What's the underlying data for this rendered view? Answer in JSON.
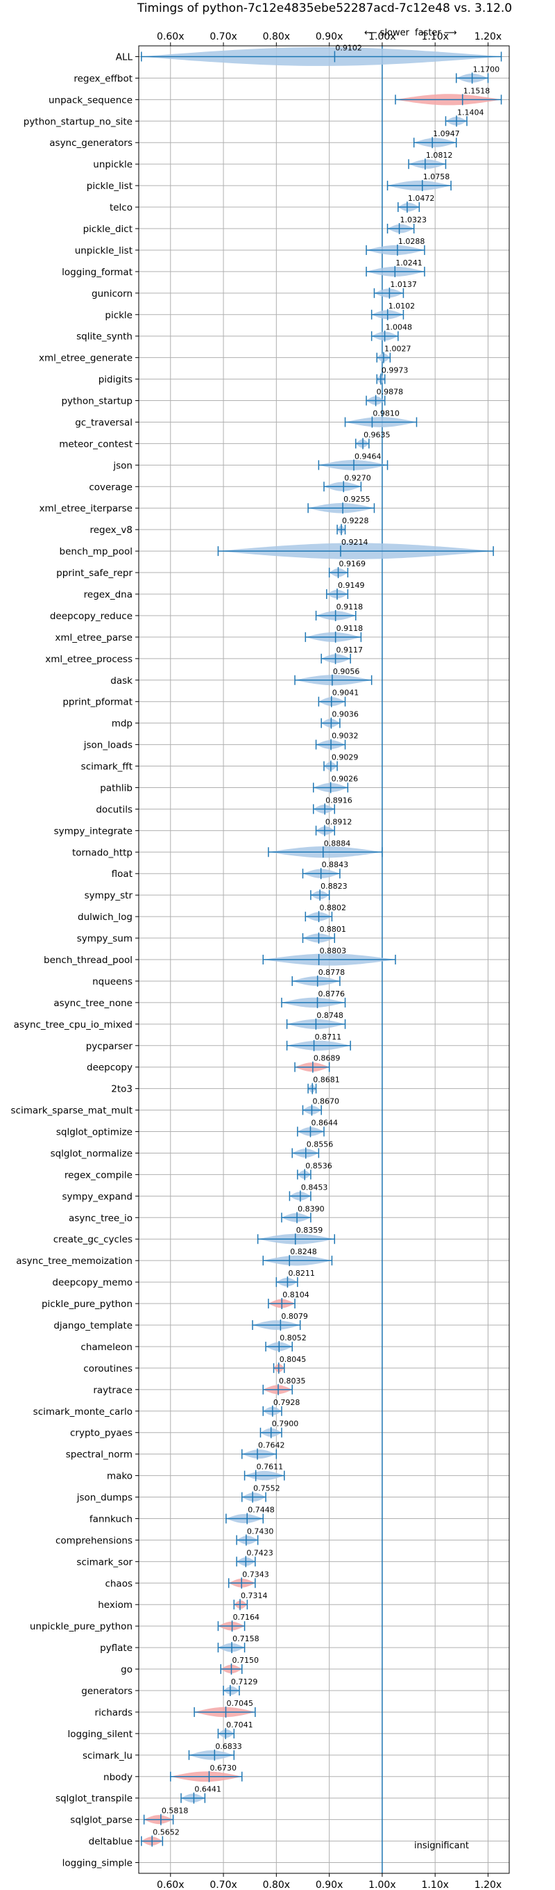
{
  "chart_data": {
    "type": "violin",
    "title": "Timings of python-7c12e4835ebe52287acd-7c12e48 vs. 3.12.0",
    "annotation_slower": "⟵ slower",
    "annotation_faster": "faster ⟶",
    "insignificant_label": "insignificant",
    "xlim": [
      0.54,
      1.24
    ],
    "x_ticks": [
      0.6,
      0.7,
      0.8,
      0.9,
      1.0,
      1.1,
      1.2
    ],
    "x_tick_labels": [
      "0.60x",
      "0.70x",
      "0.80x",
      "0.90x",
      "1.00x",
      "1.10x",
      "1.20x"
    ],
    "reference_line": 1.0,
    "grid": true,
    "colors": {
      "neutral": "#a9c8e6",
      "regression": "#f4a6a6",
      "error_bar": "#1f77b4",
      "reference_line": "#1f77b4"
    },
    "series": [
      {
        "name": "ALL",
        "value": 0.9102,
        "min": 0.545,
        "max": 1.225,
        "color": "blue",
        "show_value": true
      },
      {
        "name": "regex_effbot",
        "value": 1.17,
        "min": 1.14,
        "max": 1.2,
        "color": "blue",
        "show_value": true
      },
      {
        "name": "unpack_sequence",
        "value": 1.1518,
        "min": 1.025,
        "max": 1.225,
        "color": "red",
        "show_value": true
      },
      {
        "name": "python_startup_no_site",
        "value": 1.1404,
        "min": 1.12,
        "max": 1.16,
        "color": "blue",
        "show_value": true
      },
      {
        "name": "async_generators",
        "value": 1.0947,
        "min": 1.06,
        "max": 1.14,
        "color": "blue",
        "show_value": true
      },
      {
        "name": "unpickle",
        "value": 1.0812,
        "min": 1.05,
        "max": 1.12,
        "color": "blue",
        "show_value": true
      },
      {
        "name": "pickle_list",
        "value": 1.0758,
        "min": 1.01,
        "max": 1.13,
        "color": "blue",
        "show_value": true
      },
      {
        "name": "telco",
        "value": 1.0472,
        "min": 1.03,
        "max": 1.07,
        "color": "blue",
        "show_value": true
      },
      {
        "name": "pickle_dict",
        "value": 1.0323,
        "min": 1.01,
        "max": 1.06,
        "color": "blue",
        "show_value": true
      },
      {
        "name": "unpickle_list",
        "value": 1.0288,
        "min": 0.97,
        "max": 1.08,
        "color": "blue",
        "show_value": true
      },
      {
        "name": "logging_format",
        "value": 1.0241,
        "min": 0.97,
        "max": 1.08,
        "color": "blue",
        "show_value": true
      },
      {
        "name": "gunicorn",
        "value": 1.0137,
        "min": 0.985,
        "max": 1.04,
        "color": "blue",
        "show_value": true
      },
      {
        "name": "pickle",
        "value": 1.0102,
        "min": 0.98,
        "max": 1.04,
        "color": "blue",
        "show_value": true
      },
      {
        "name": "sqlite_synth",
        "value": 1.0048,
        "min": 0.98,
        "max": 1.03,
        "color": "blue",
        "show_value": true
      },
      {
        "name": "xml_etree_generate",
        "value": 1.0027,
        "min": 0.99,
        "max": 1.015,
        "color": "blue",
        "show_value": true
      },
      {
        "name": "pidigits",
        "value": 0.9973,
        "min": 0.99,
        "max": 1.005,
        "color": "blue",
        "show_value": true
      },
      {
        "name": "python_startup",
        "value": 0.9878,
        "min": 0.97,
        "max": 1.005,
        "color": "blue",
        "show_value": true
      },
      {
        "name": "gc_traversal",
        "value": 0.981,
        "min": 0.93,
        "max": 1.065,
        "color": "blue",
        "show_value": true
      },
      {
        "name": "meteor_contest",
        "value": 0.9635,
        "min": 0.95,
        "max": 0.975,
        "color": "blue",
        "show_value": true
      },
      {
        "name": "json",
        "value": 0.9464,
        "min": 0.88,
        "max": 1.01,
        "color": "blue",
        "show_value": true
      },
      {
        "name": "coverage",
        "value": 0.927,
        "min": 0.89,
        "max": 0.96,
        "color": "blue",
        "show_value": true
      },
      {
        "name": "xml_etree_iterparse",
        "value": 0.9255,
        "min": 0.86,
        "max": 0.985,
        "color": "blue",
        "show_value": true
      },
      {
        "name": "regex_v8",
        "value": 0.9228,
        "min": 0.915,
        "max": 0.93,
        "color": "blue",
        "show_value": true
      },
      {
        "name": "bench_mp_pool",
        "value": 0.9214,
        "min": 0.69,
        "max": 1.21,
        "color": "blue",
        "show_value": true
      },
      {
        "name": "pprint_safe_repr",
        "value": 0.9169,
        "min": 0.9,
        "max": 0.935,
        "color": "blue",
        "show_value": true
      },
      {
        "name": "regex_dna",
        "value": 0.9149,
        "min": 0.895,
        "max": 0.935,
        "color": "blue",
        "show_value": true
      },
      {
        "name": "deepcopy_reduce",
        "value": 0.9118,
        "min": 0.875,
        "max": 0.95,
        "color": "blue",
        "show_value": true
      },
      {
        "name": "xml_etree_parse",
        "value": 0.9118,
        "min": 0.855,
        "max": 0.96,
        "color": "blue",
        "show_value": true
      },
      {
        "name": "xml_etree_process",
        "value": 0.9117,
        "min": 0.885,
        "max": 0.94,
        "color": "blue",
        "show_value": true
      },
      {
        "name": "dask",
        "value": 0.9056,
        "min": 0.835,
        "max": 0.98,
        "color": "blue",
        "show_value": true
      },
      {
        "name": "pprint_pformat",
        "value": 0.9041,
        "min": 0.88,
        "max": 0.93,
        "color": "blue",
        "show_value": true
      },
      {
        "name": "mdp",
        "value": 0.9036,
        "min": 0.885,
        "max": 0.92,
        "color": "blue",
        "show_value": true
      },
      {
        "name": "json_loads",
        "value": 0.9032,
        "min": 0.875,
        "max": 0.93,
        "color": "blue",
        "show_value": true
      },
      {
        "name": "scimark_fft",
        "value": 0.9029,
        "min": 0.89,
        "max": 0.915,
        "color": "blue",
        "show_value": true
      },
      {
        "name": "pathlib",
        "value": 0.9026,
        "min": 0.87,
        "max": 0.935,
        "color": "blue",
        "show_value": true
      },
      {
        "name": "docutils",
        "value": 0.8916,
        "min": 0.87,
        "max": 0.91,
        "color": "blue",
        "show_value": true
      },
      {
        "name": "sympy_integrate",
        "value": 0.8912,
        "min": 0.875,
        "max": 0.91,
        "color": "blue",
        "show_value": true
      },
      {
        "name": "tornado_http",
        "value": 0.8884,
        "min": 0.785,
        "max": 1.0,
        "color": "blue",
        "show_value": true
      },
      {
        "name": "float",
        "value": 0.8843,
        "min": 0.85,
        "max": 0.92,
        "color": "blue",
        "show_value": true
      },
      {
        "name": "sympy_str",
        "value": 0.8823,
        "min": 0.865,
        "max": 0.9,
        "color": "blue",
        "show_value": true
      },
      {
        "name": "dulwich_log",
        "value": 0.8802,
        "min": 0.855,
        "max": 0.905,
        "color": "blue",
        "show_value": true
      },
      {
        "name": "sympy_sum",
        "value": 0.8801,
        "min": 0.85,
        "max": 0.91,
        "color": "blue",
        "show_value": true
      },
      {
        "name": "bench_thread_pool",
        "value": 0.8803,
        "min": 0.775,
        "max": 1.025,
        "color": "blue",
        "show_value": true
      },
      {
        "name": "nqueens",
        "value": 0.8778,
        "min": 0.83,
        "max": 0.92,
        "color": "blue",
        "show_value": true
      },
      {
        "name": "async_tree_none",
        "value": 0.8776,
        "min": 0.81,
        "max": 0.93,
        "color": "blue",
        "show_value": true
      },
      {
        "name": "async_tree_cpu_io_mixed",
        "value": 0.8748,
        "min": 0.82,
        "max": 0.93,
        "color": "blue",
        "show_value": true
      },
      {
        "name": "pycparser",
        "value": 0.8711,
        "min": 0.82,
        "max": 0.94,
        "color": "blue",
        "show_value": true
      },
      {
        "name": "deepcopy",
        "value": 0.8689,
        "min": 0.835,
        "max": 0.9,
        "color": "red",
        "show_value": true
      },
      {
        "name": "2to3",
        "value": 0.8681,
        "min": 0.86,
        "max": 0.875,
        "color": "blue",
        "show_value": true
      },
      {
        "name": "scimark_sparse_mat_mult",
        "value": 0.867,
        "min": 0.85,
        "max": 0.885,
        "color": "blue",
        "show_value": true
      },
      {
        "name": "sqlglot_optimize",
        "value": 0.8644,
        "min": 0.84,
        "max": 0.89,
        "color": "blue",
        "show_value": true
      },
      {
        "name": "sqlglot_normalize",
        "value": 0.8556,
        "min": 0.83,
        "max": 0.88,
        "color": "blue",
        "show_value": true
      },
      {
        "name": "regex_compile",
        "value": 0.8536,
        "min": 0.84,
        "max": 0.865,
        "color": "blue",
        "show_value": true
      },
      {
        "name": "sympy_expand",
        "value": 0.8453,
        "min": 0.825,
        "max": 0.865,
        "color": "blue",
        "show_value": true
      },
      {
        "name": "async_tree_io",
        "value": 0.839,
        "min": 0.81,
        "max": 0.865,
        "color": "blue",
        "show_value": true
      },
      {
        "name": "create_gc_cycles",
        "value": 0.8359,
        "min": 0.765,
        "max": 0.91,
        "color": "blue",
        "show_value": true
      },
      {
        "name": "async_tree_memoization",
        "value": 0.8248,
        "min": 0.775,
        "max": 0.905,
        "color": "blue",
        "show_value": true
      },
      {
        "name": "deepcopy_memo",
        "value": 0.8211,
        "min": 0.8,
        "max": 0.84,
        "color": "blue",
        "show_value": true
      },
      {
        "name": "pickle_pure_python",
        "value": 0.8104,
        "min": 0.785,
        "max": 0.835,
        "color": "red",
        "show_value": true
      },
      {
        "name": "django_template",
        "value": 0.8079,
        "min": 0.755,
        "max": 0.845,
        "color": "blue",
        "show_value": true
      },
      {
        "name": "chameleon",
        "value": 0.8052,
        "min": 0.78,
        "max": 0.83,
        "color": "blue",
        "show_value": true
      },
      {
        "name": "coroutines",
        "value": 0.8045,
        "min": 0.795,
        "max": 0.815,
        "color": "red",
        "show_value": true
      },
      {
        "name": "raytrace",
        "value": 0.8035,
        "min": 0.775,
        "max": 0.83,
        "color": "red",
        "show_value": true
      },
      {
        "name": "scimark_monte_carlo",
        "value": 0.7928,
        "min": 0.775,
        "max": 0.81,
        "color": "blue",
        "show_value": true
      },
      {
        "name": "crypto_pyaes",
        "value": 0.79,
        "min": 0.77,
        "max": 0.81,
        "color": "blue",
        "show_value": true
      },
      {
        "name": "spectral_norm",
        "value": 0.7642,
        "min": 0.735,
        "max": 0.8,
        "color": "blue",
        "show_value": true
      },
      {
        "name": "mako",
        "value": 0.7611,
        "min": 0.74,
        "max": 0.815,
        "color": "blue",
        "show_value": true
      },
      {
        "name": "json_dumps",
        "value": 0.7552,
        "min": 0.735,
        "max": 0.78,
        "color": "blue",
        "show_value": true
      },
      {
        "name": "fannkuch",
        "value": 0.7448,
        "min": 0.705,
        "max": 0.775,
        "color": "blue",
        "show_value": true
      },
      {
        "name": "comprehensions",
        "value": 0.743,
        "min": 0.725,
        "max": 0.765,
        "color": "blue",
        "show_value": true
      },
      {
        "name": "scimark_sor",
        "value": 0.7423,
        "min": 0.725,
        "max": 0.76,
        "color": "blue",
        "show_value": true
      },
      {
        "name": "chaos",
        "value": 0.7343,
        "min": 0.71,
        "max": 0.76,
        "color": "red",
        "show_value": true
      },
      {
        "name": "hexiom",
        "value": 0.7314,
        "min": 0.72,
        "max": 0.745,
        "color": "red",
        "show_value": true
      },
      {
        "name": "unpickle_pure_python",
        "value": 0.7164,
        "min": 0.69,
        "max": 0.74,
        "color": "red",
        "show_value": true
      },
      {
        "name": "pyflate",
        "value": 0.7158,
        "min": 0.69,
        "max": 0.74,
        "color": "blue",
        "show_value": true
      },
      {
        "name": "go",
        "value": 0.715,
        "min": 0.695,
        "max": 0.735,
        "color": "red",
        "show_value": true
      },
      {
        "name": "generators",
        "value": 0.7129,
        "min": 0.7,
        "max": 0.73,
        "color": "blue",
        "show_value": true
      },
      {
        "name": "richards",
        "value": 0.7045,
        "min": 0.645,
        "max": 0.76,
        "color": "red",
        "show_value": true
      },
      {
        "name": "logging_silent",
        "value": 0.7041,
        "min": 0.69,
        "max": 0.72,
        "color": "blue",
        "show_value": true
      },
      {
        "name": "scimark_lu",
        "value": 0.6833,
        "min": 0.635,
        "max": 0.72,
        "color": "blue",
        "show_value": true
      },
      {
        "name": "nbody",
        "value": 0.673,
        "min": 0.6,
        "max": 0.735,
        "color": "red",
        "show_value": true
      },
      {
        "name": "sqlglot_transpile",
        "value": 0.6441,
        "min": 0.62,
        "max": 0.665,
        "color": "blue",
        "show_value": true
      },
      {
        "name": "sqlglot_parse",
        "value": 0.5818,
        "min": 0.55,
        "max": 0.605,
        "color": "red",
        "show_value": true
      },
      {
        "name": "deltablue",
        "value": 0.5652,
        "min": 0.545,
        "max": 0.585,
        "color": "red",
        "show_value": true
      },
      {
        "name": "logging_simple",
        "value": 1.0,
        "min": null,
        "max": null,
        "color": "none",
        "show_value": false
      }
    ]
  }
}
